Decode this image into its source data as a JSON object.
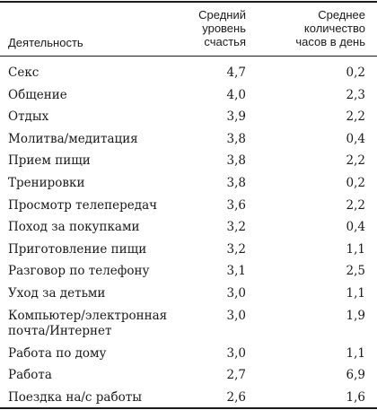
{
  "table": {
    "header": {
      "activity": "Деятельность",
      "happiness": "Средний\nуровень\nсчастья",
      "hours": "Среднее\nколичество\nчасов в день"
    },
    "rows": [
      {
        "activity": "Секс",
        "happiness": "4,7",
        "hours": "0,2"
      },
      {
        "activity": "Общение",
        "happiness": "4,0",
        "hours": "2,3"
      },
      {
        "activity": "Отдых",
        "happiness": "3,9",
        "hours": "2,2"
      },
      {
        "activity": "Молитва/медитация",
        "happiness": "3,8",
        "hours": "0,4"
      },
      {
        "activity": "Прием пищи",
        "happiness": "3,8",
        "hours": "2,2"
      },
      {
        "activity": "Тренировки",
        "happiness": "3,8",
        "hours": "0,2"
      },
      {
        "activity": "Просмотр телепередач",
        "happiness": "3,6",
        "hours": "2,2"
      },
      {
        "activity": "Поход за покупками",
        "happiness": "3,2",
        "hours": "0,4"
      },
      {
        "activity": "Приготовление пищи",
        "happiness": "3,2",
        "hours": "1,1"
      },
      {
        "activity": "Разговор по телефону",
        "happiness": "3,1",
        "hours": "2,5"
      },
      {
        "activity": "Уход за детьми",
        "happiness": "3,0",
        "hours": "1,1"
      },
      {
        "activity": "Компьютер/электронная\nпочта/Интернет",
        "happiness": "3,0",
        "hours": "1,9"
      },
      {
        "activity": "Работа по дому",
        "happiness": "3,0",
        "hours": "1,1"
      },
      {
        "activity": "Работа",
        "happiness": "2,7",
        "hours": "6,9"
      },
      {
        "activity": "Поездка на/с работы",
        "happiness": "2,6",
        "hours": "1,6"
      }
    ]
  }
}
